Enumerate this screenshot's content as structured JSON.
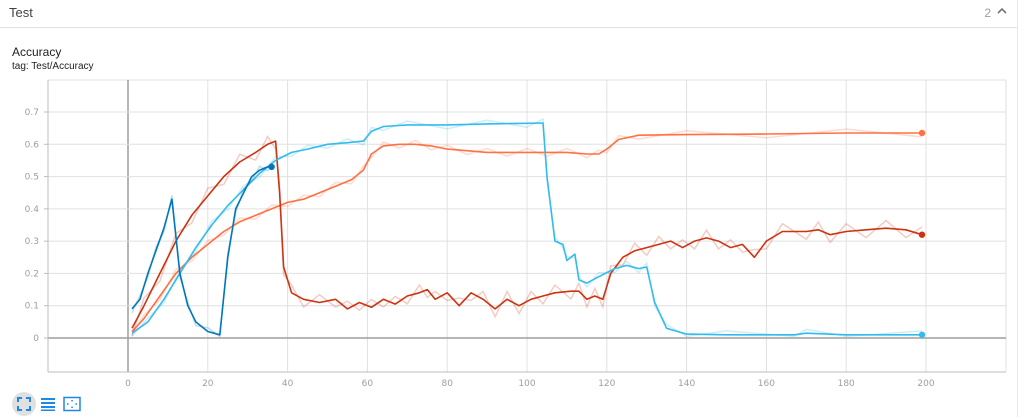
{
  "group": {
    "title": "Test",
    "count": "2",
    "toggle_icon": "chevron-up-icon"
  },
  "card": {
    "title": "Accuracy",
    "tag": "tag: Test/Accuracy"
  },
  "toolbar": {
    "buttons": [
      {
        "name": "fit-domain-button",
        "icon": "fullscreen-icon",
        "active": true
      },
      {
        "name": "toggle-log-scale-button",
        "icon": "lines-icon",
        "active": false
      },
      {
        "name": "fit-to-data-button",
        "icon": "fit-screen-icon",
        "active": false
      }
    ]
  },
  "colors": {
    "orange": "#ff7043",
    "dark_red": "#cc3311",
    "light_blue": "#33bbee",
    "dark_blue": "#0077bb",
    "grid": "#e0e0e0",
    "axis": "#9e9e9e"
  },
  "chart_data": {
    "type": "line",
    "title": "Accuracy",
    "subtitle": "tag: Test/Accuracy",
    "xlabel": "",
    "ylabel": "",
    "xlim": [
      -20,
      220
    ],
    "ylim": [
      -0.035,
      0.79
    ],
    "x_ticks": [
      0,
      20,
      40,
      60,
      80,
      100,
      120,
      140,
      160,
      180,
      200
    ],
    "y_ticks": [
      0,
      0.1,
      0.2,
      0.3,
      0.4,
      0.5,
      0.6,
      0.7
    ],
    "y_tick_labels": [
      "0",
      "0.1",
      "0.2",
      "0.3",
      "0.4",
      "0.5",
      "0.6",
      "0.7"
    ],
    "grid": true,
    "legend": "none",
    "series": [
      {
        "name": "run-orange",
        "color": "#ff7043",
        "smoothed": [
          [
            1,
            0.02
          ],
          [
            4,
            0.06
          ],
          [
            8,
            0.13
          ],
          [
            12,
            0.2
          ],
          [
            16,
            0.25
          ],
          [
            20,
            0.29
          ],
          [
            24,
            0.33
          ],
          [
            28,
            0.36
          ],
          [
            32,
            0.38
          ],
          [
            36,
            0.4
          ],
          [
            40,
            0.42
          ],
          [
            44,
            0.43
          ],
          [
            48,
            0.45
          ],
          [
            52,
            0.47
          ],
          [
            56,
            0.49
          ],
          [
            59,
            0.52
          ],
          [
            61,
            0.57
          ],
          [
            64,
            0.595
          ],
          [
            68,
            0.6
          ],
          [
            72,
            0.6
          ],
          [
            76,
            0.595
          ],
          [
            80,
            0.585
          ],
          [
            85,
            0.58
          ],
          [
            90,
            0.575
          ],
          [
            95,
            0.575
          ],
          [
            100,
            0.575
          ],
          [
            105,
            0.575
          ],
          [
            110,
            0.575
          ],
          [
            115,
            0.57
          ],
          [
            118,
            0.57
          ],
          [
            120,
            0.585
          ],
          [
            123,
            0.615
          ],
          [
            128,
            0.628
          ],
          [
            140,
            0.63
          ],
          [
            160,
            0.632
          ],
          [
            180,
            0.635
          ],
          [
            199,
            0.635
          ]
        ],
        "endpoint": [
          199,
          0.635
        ]
      },
      {
        "name": "run-dark-red",
        "color": "#cc3311",
        "smoothed": [
          [
            1,
            0.03
          ],
          [
            4,
            0.1
          ],
          [
            8,
            0.2
          ],
          [
            12,
            0.3
          ],
          [
            16,
            0.38
          ],
          [
            20,
            0.44
          ],
          [
            24,
            0.5
          ],
          [
            28,
            0.545
          ],
          [
            32,
            0.575
          ],
          [
            35,
            0.6
          ],
          [
            37,
            0.61
          ],
          [
            38,
            0.45
          ],
          [
            39,
            0.22
          ],
          [
            41,
            0.14
          ],
          [
            44,
            0.12
          ],
          [
            48,
            0.11
          ],
          [
            52,
            0.12
          ],
          [
            55,
            0.09
          ],
          [
            58,
            0.11
          ],
          [
            61,
            0.095
          ],
          [
            64,
            0.12
          ],
          [
            67,
            0.105
          ],
          [
            70,
            0.13
          ],
          [
            73,
            0.14
          ],
          [
            75,
            0.15
          ],
          [
            77,
            0.12
          ],
          [
            80,
            0.14
          ],
          [
            83,
            0.1
          ],
          [
            86,
            0.14
          ],
          [
            89,
            0.12
          ],
          [
            92,
            0.09
          ],
          [
            95,
            0.12
          ],
          [
            98,
            0.1
          ],
          [
            101,
            0.12
          ],
          [
            104,
            0.13
          ],
          [
            107,
            0.14
          ],
          [
            111,
            0.145
          ],
          [
            113,
            0.145
          ],
          [
            115,
            0.12
          ],
          [
            117,
            0.13
          ],
          [
            119,
            0.12
          ],
          [
            121,
            0.2
          ],
          [
            124,
            0.25
          ],
          [
            127,
            0.27
          ],
          [
            130,
            0.28
          ],
          [
            133,
            0.29
          ],
          [
            136,
            0.3
          ],
          [
            139,
            0.28
          ],
          [
            142,
            0.3
          ],
          [
            145,
            0.31
          ],
          [
            148,
            0.3
          ],
          [
            151,
            0.28
          ],
          [
            154,
            0.29
          ],
          [
            157,
            0.25
          ],
          [
            160,
            0.3
          ],
          [
            164,
            0.33
          ],
          [
            170,
            0.33
          ],
          [
            173,
            0.335
          ],
          [
            176,
            0.32
          ],
          [
            180,
            0.33
          ],
          [
            185,
            0.335
          ],
          [
            190,
            0.34
          ],
          [
            195,
            0.335
          ],
          [
            199,
            0.32
          ]
        ],
        "endpoint": [
          199,
          0.32
        ]
      },
      {
        "name": "run-light-blue",
        "color": "#33bbee",
        "smoothed": [
          [
            1,
            0.015
          ],
          [
            5,
            0.05
          ],
          [
            9,
            0.12
          ],
          [
            13,
            0.2
          ],
          [
            17,
            0.28
          ],
          [
            21,
            0.35
          ],
          [
            25,
            0.41
          ],
          [
            29,
            0.46
          ],
          [
            33,
            0.51
          ],
          [
            37,
            0.55
          ],
          [
            41,
            0.575
          ],
          [
            45,
            0.585
          ],
          [
            50,
            0.6
          ],
          [
            55,
            0.605
          ],
          [
            59,
            0.61
          ],
          [
            61,
            0.64
          ],
          [
            64,
            0.655
          ],
          [
            70,
            0.66
          ],
          [
            80,
            0.66
          ],
          [
            90,
            0.663
          ],
          [
            100,
            0.665
          ],
          [
            104,
            0.666
          ],
          [
            105,
            0.5
          ],
          [
            107,
            0.3
          ],
          [
            109,
            0.29
          ],
          [
            110,
            0.24
          ],
          [
            112,
            0.26
          ],
          [
            113,
            0.18
          ],
          [
            115,
            0.17
          ],
          [
            118,
            0.19
          ],
          [
            122,
            0.215
          ],
          [
            125,
            0.225
          ],
          [
            128,
            0.215
          ],
          [
            130,
            0.22
          ],
          [
            132,
            0.11
          ],
          [
            135,
            0.03
          ],
          [
            140,
            0.012
          ],
          [
            150,
            0.01
          ],
          [
            167,
            0.01
          ],
          [
            170,
            0.015
          ],
          [
            180,
            0.01
          ],
          [
            199,
            0.01
          ]
        ],
        "endpoint": [
          199,
          0.01
        ]
      },
      {
        "name": "run-dark-blue",
        "color": "#0077bb",
        "smoothed": [
          [
            1,
            0.09
          ],
          [
            3,
            0.12
          ],
          [
            5,
            0.2
          ],
          [
            7,
            0.27
          ],
          [
            9,
            0.34
          ],
          [
            11,
            0.43
          ],
          [
            13,
            0.2
          ],
          [
            15,
            0.1
          ],
          [
            17,
            0.05
          ],
          [
            20,
            0.02
          ],
          [
            23,
            0.01
          ],
          [
            25,
            0.25
          ],
          [
            27,
            0.4
          ],
          [
            29,
            0.45
          ],
          [
            31,
            0.5
          ],
          [
            33,
            0.52
          ],
          [
            35,
            0.53
          ],
          [
            36,
            0.53
          ]
        ],
        "endpoint": [
          36,
          0.53
        ]
      }
    ]
  }
}
